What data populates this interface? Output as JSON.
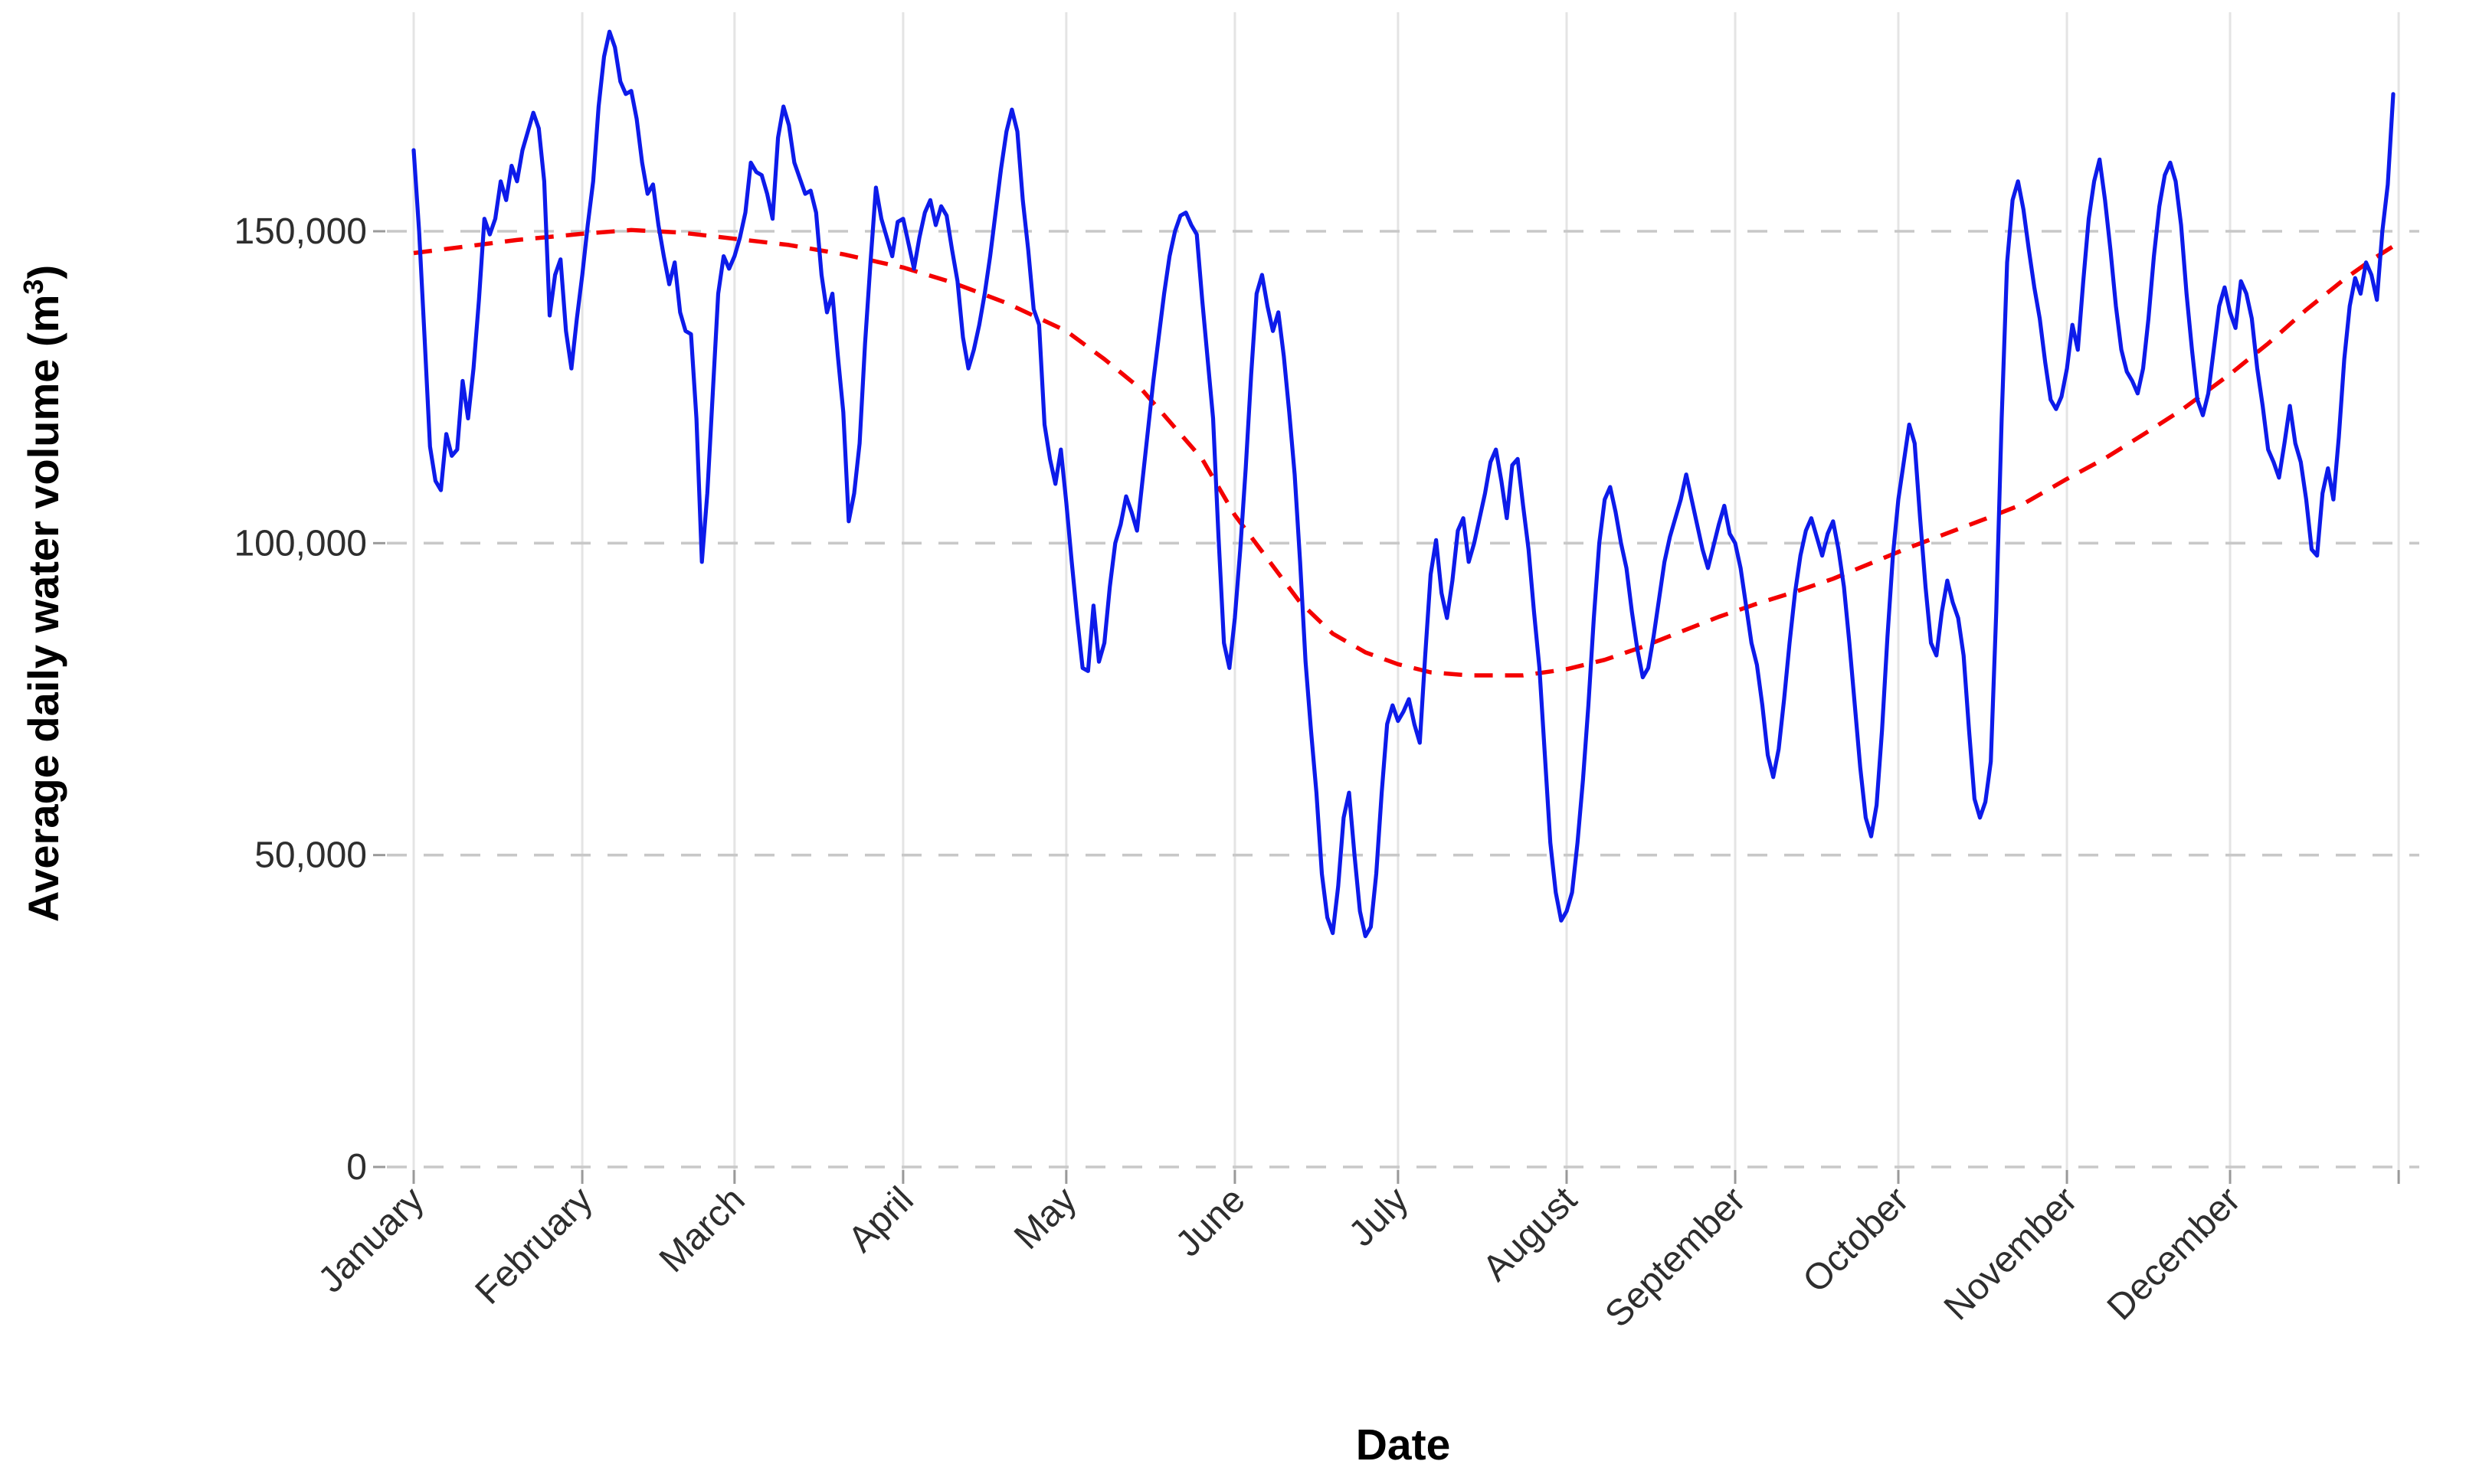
{
  "chart_data": {
    "type": "line",
    "title": "",
    "xlabel": "Date",
    "ylabel_parts": {
      "pre": "Average daily water volume (m",
      "sup": "3",
      "post": ")"
    },
    "x_axis": {
      "unit": "day of year",
      "range_days": [
        1,
        366
      ],
      "month_boundaries": [
        1,
        32,
        60,
        91,
        121,
        152,
        182,
        213,
        244,
        274,
        305,
        335,
        366
      ],
      "months": [
        {
          "label": "January",
          "start_day": 1
        },
        {
          "label": "February",
          "start_day": 32
        },
        {
          "label": "March",
          "start_day": 60
        },
        {
          "label": "April",
          "start_day": 91
        },
        {
          "label": "May",
          "start_day": 121
        },
        {
          "label": "June",
          "start_day": 152
        },
        {
          "label": "July",
          "start_day": 182
        },
        {
          "label": "August",
          "start_day": 213
        },
        {
          "label": "September",
          "start_day": 244
        },
        {
          "label": "October",
          "start_day": 274
        },
        {
          "label": "November",
          "start_day": 305
        },
        {
          "label": "December",
          "start_day": 335
        }
      ]
    },
    "y_axis": {
      "unit": "m3",
      "range": [
        0,
        185000
      ],
      "grid": "dashed horizontal, solid vertical",
      "ticks": [
        {
          "value": 0,
          "label": "0"
        },
        {
          "value": 50000,
          "label": "50,000"
        },
        {
          "value": 100000,
          "label": "100,000"
        },
        {
          "value": 150000,
          "label": "150,000"
        }
      ]
    },
    "legend": "none",
    "series": [
      {
        "name": "daily-water-volume",
        "style": "solid",
        "color_key": "blue_series",
        "start_day": 1,
        "daily_values": [
          163000,
          150000,
          133000,
          115500,
          110000,
          108500,
          117500,
          114000,
          115000,
          126000,
          120000,
          128000,
          139000,
          152000,
          149500,
          152000,
          158000,
          155000,
          160500,
          158000,
          163000,
          166000,
          169000,
          166500,
          158000,
          136500,
          143000,
          145500,
          134000,
          128000,
          136000,
          143000,
          151000,
          158000,
          170000,
          178000,
          182000,
          179500,
          174000,
          172000,
          172500,
          168000,
          161000,
          156000,
          157500,
          151000,
          146000,
          141500,
          145000,
          137000,
          134000,
          133500,
          120000,
          97000,
          108000,
          124000,
          140000,
          146000,
          144000,
          146000,
          149000,
          153000,
          161000,
          159500,
          159000,
          156000,
          152000,
          165000,
          170000,
          167000,
          161000,
          158500,
          156000,
          156500,
          153000,
          143000,
          137000,
          140000,
          130000,
          121000,
          103500,
          108000,
          116000,
          132000,
          145000,
          157000,
          152000,
          149000,
          146000,
          151500,
          152000,
          148000,
          144000,
          149000,
          153000,
          155000,
          151000,
          154000,
          152500,
          147000,
          142000,
          133000,
          128000,
          131000,
          135000,
          140000,
          146000,
          153000,
          160000,
          166000,
          169500,
          166000,
          155000,
          147000,
          137500,
          135000,
          119000,
          113500,
          109500,
          115000,
          106500,
          97000,
          88000,
          80000,
          79500,
          90000,
          81000,
          84000,
          93000,
          100000,
          103000,
          107500,
          105000,
          102000,
          110000,
          118000,
          126000,
          133000,
          140000,
          146000,
          150000,
          152500,
          153000,
          151000,
          149500,
          139000,
          129500,
          120000,
          101000,
          84000,
          80000,
          88000,
          99000,
          112000,
          127000,
          140000,
          143000,
          138000,
          134000,
          137000,
          130000,
          121000,
          111000,
          97000,
          81000,
          70000,
          60000,
          47000,
          40000,
          37500,
          45000,
          56000,
          60000,
          50000,
          41000,
          37000,
          38500,
          47000,
          60000,
          71000,
          74000,
          71500,
          73000,
          75000,
          71000,
          68000,
          82000,
          95000,
          100500,
          92000,
          88000,
          94000,
          102000,
          104000,
          97000,
          100000,
          104000,
          108000,
          113000,
          115000,
          110000,
          104000,
          112500,
          113500,
          106000,
          99000,
          89000,
          80000,
          66000,
          52000,
          44000,
          39500,
          41000,
          44000,
          52000,
          62000,
          74000,
          88000,
          100000,
          107000,
          109000,
          105000,
          100000,
          96000,
          89000,
          83000,
          78500,
          80000,
          85000,
          91000,
          97000,
          101000,
          104000,
          107000,
          111000,
          107000,
          103000,
          99000,
          96000,
          99500,
          103000,
          106000,
          101500,
          100000,
          96000,
          90000,
          84000,
          80500,
          74000,
          66000,
          62500,
          67000,
          75000,
          84000,
          92000,
          98000,
          102000,
          104000,
          101000,
          98000,
          101500,
          103500,
          99000,
          93000,
          84000,
          74000,
          64000,
          56000,
          53000,
          58000,
          70000,
          85000,
          98000,
          107000,
          113000,
          119000,
          116000,
          104000,
          93000,
          84000,
          82000,
          89000,
          94000,
          90500,
          88000,
          82000,
          70000,
          59000,
          56000,
          58500,
          65000,
          89000,
          120000,
          145000,
          155000,
          158000,
          153500,
          147000,
          141000,
          136000,
          129000,
          123000,
          121500,
          123500,
          128000,
          135000,
          131000,
          142000,
          152000,
          158000,
          161500,
          155000,
          147000,
          138000,
          131000,
          127500,
          126000,
          124000,
          128000,
          136000,
          146000,
          154000,
          159000,
          161000,
          158000,
          151000,
          140000,
          131000,
          123000,
          120500,
          124000,
          131000,
          138000,
          141000,
          137000,
          134500,
          142000,
          140000,
          136000,
          128000,
          122000,
          115000,
          113000,
          110500,
          116000,
          122000,
          116000,
          113000,
          107000,
          99000,
          98000,
          108000,
          112000,
          107000,
          117000,
          129500,
          138000,
          142500,
          140000,
          145000,
          143000,
          139000,
          150000,
          157500,
          172000
        ]
      },
      {
        "name": "smoothed-trend",
        "style": "dashed",
        "color_key": "red_trend",
        "points": [
          [
            1,
            146500
          ],
          [
            10,
            147500
          ],
          [
            20,
            148600
          ],
          [
            32,
            149600
          ],
          [
            41,
            150200
          ],
          [
            50,
            149800
          ],
          [
            60,
            148800
          ],
          [
            70,
            147800
          ],
          [
            80,
            146300
          ],
          [
            91,
            144200
          ],
          [
            100,
            141800
          ],
          [
            110,
            138500
          ],
          [
            121,
            134000
          ],
          [
            128,
            129500
          ],
          [
            135,
            124500
          ],
          [
            141,
            118500
          ],
          [
            146,
            113500
          ],
          [
            152,
            104500
          ],
          [
            158,
            97500
          ],
          [
            164,
            90500
          ],
          [
            170,
            85500
          ],
          [
            176,
            82500
          ],
          [
            182,
            80600
          ],
          [
            188,
            79300
          ],
          [
            195,
            78800
          ],
          [
            205,
            78800
          ],
          [
            213,
            79800
          ],
          [
            220,
            81300
          ],
          [
            227,
            83400
          ],
          [
            234,
            85800
          ],
          [
            241,
            88200
          ],
          [
            248,
            90300
          ],
          [
            255,
            92200
          ],
          [
            262,
            94300
          ],
          [
            269,
            96800
          ],
          [
            276,
            99300
          ],
          [
            283,
            101600
          ],
          [
            290,
            103900
          ],
          [
            297,
            106300
          ],
          [
            305,
            110300
          ],
          [
            312,
            113600
          ],
          [
            319,
            117400
          ],
          [
            326,
            121300
          ],
          [
            335,
            127100
          ],
          [
            342,
            132000
          ],
          [
            349,
            137400
          ],
          [
            356,
            142300
          ],
          [
            361,
            145400
          ],
          [
            365,
            147600
          ]
        ]
      }
    ],
    "colors": {
      "blue_series": "#0D1BEA",
      "red_trend": "#F40000",
      "h_grid": "#C8C8C8",
      "v_grid": "#E4E4E4",
      "tick_text": "#2E2E2E",
      "title_text": "#000000"
    }
  }
}
